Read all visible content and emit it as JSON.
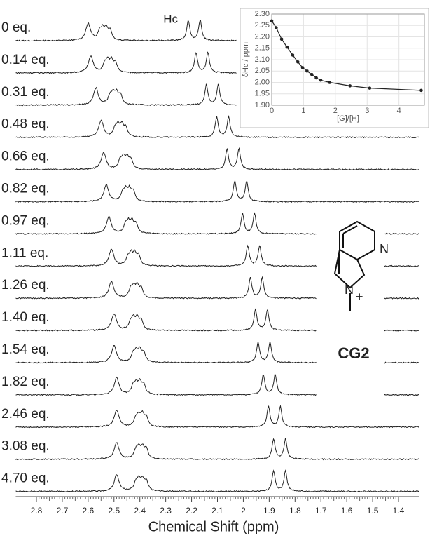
{
  "chart_data": [
    {
      "type": "spectra",
      "xlabel": "Chemical Shift (ppm)",
      "peak_label": "Hc",
      "xlim": [
        2.88,
        1.32
      ],
      "xticks": [
        2.8,
        2.7,
        2.6,
        2.5,
        2.4,
        2.3,
        2.2,
        2.1,
        2.0,
        1.9,
        1.8,
        1.7,
        1.6,
        1.5,
        1.4
      ],
      "color": "#222222",
      "series": [
        {
          "name": "0 eq.",
          "values": [
            2.6,
            2.54,
            2.19
          ]
        },
        {
          "name": "0.14 eq.",
          "values": [
            2.59,
            2.52,
            2.16
          ]
        },
        {
          "name": "0.31 eq.",
          "values": [
            2.57,
            2.5,
            2.12
          ]
        },
        {
          "name": "0.48 eq.",
          "values": [
            2.55,
            2.48,
            2.08
          ]
        },
        {
          "name": "0.66 eq.",
          "values": [
            2.54,
            2.46,
            2.04
          ]
        },
        {
          "name": "0.82 eq.",
          "values": [
            2.53,
            2.45,
            2.01
          ]
        },
        {
          "name": "0.97 eq.",
          "values": [
            2.52,
            2.44,
            1.98
          ]
        },
        {
          "name": "1.11 eq.",
          "values": [
            2.51,
            2.43,
            1.96
          ]
        },
        {
          "name": "1.26 eq.",
          "values": [
            2.51,
            2.42,
            1.95
          ]
        },
        {
          "name": "1.40 eq.",
          "values": [
            2.5,
            2.42,
            1.93
          ]
        },
        {
          "name": "1.54 eq.",
          "values": [
            2.5,
            2.41,
            1.92
          ]
        },
        {
          "name": "1.82 eq.",
          "values": [
            2.49,
            2.41,
            1.9
          ]
        },
        {
          "name": "2.46 eq.",
          "values": [
            2.49,
            2.4,
            1.88
          ]
        },
        {
          "name": "3.08 eq.",
          "values": [
            2.49,
            2.4,
            1.86
          ]
        },
        {
          "name": "4.70 eq.",
          "values": [
            2.49,
            2.4,
            1.86
          ]
        }
      ]
    },
    {
      "type": "scatter",
      "xlabel": "[G]/[H]",
      "ylabel": "δHc / ppm",
      "xlim": [
        0,
        4.8
      ],
      "ylim": [
        1.9,
        2.3
      ],
      "xticks": [
        0,
        1,
        2,
        3,
        4
      ],
      "yticks": [
        {
          "value": 1.9,
          "label": "1.90"
        },
        1.95,
        {
          "value": 2.0,
          "label": "2.00"
        },
        2.05,
        {
          "value": 2.1,
          "label": "2.10"
        },
        2.15,
        {
          "value": 2.2,
          "label": "2.20"
        },
        2.25,
        {
          "value": 2.3,
          "label": "2.30"
        }
      ],
      "color": "#222222",
      "x": [
        0,
        0.14,
        0.31,
        0.48,
        0.66,
        0.82,
        0.97,
        1.11,
        1.26,
        1.4,
        1.54,
        1.82,
        2.46,
        3.08,
        4.7
      ],
      "values": [
        2.27,
        2.24,
        2.19,
        2.155,
        2.12,
        2.09,
        2.065,
        2.05,
        2.035,
        2.02,
        2.01,
        2.0,
        1.985,
        1.975,
        1.965
      ]
    }
  ],
  "structure": {
    "label": "CG2",
    "atoms": [
      "N",
      "N",
      "+"
    ]
  }
}
